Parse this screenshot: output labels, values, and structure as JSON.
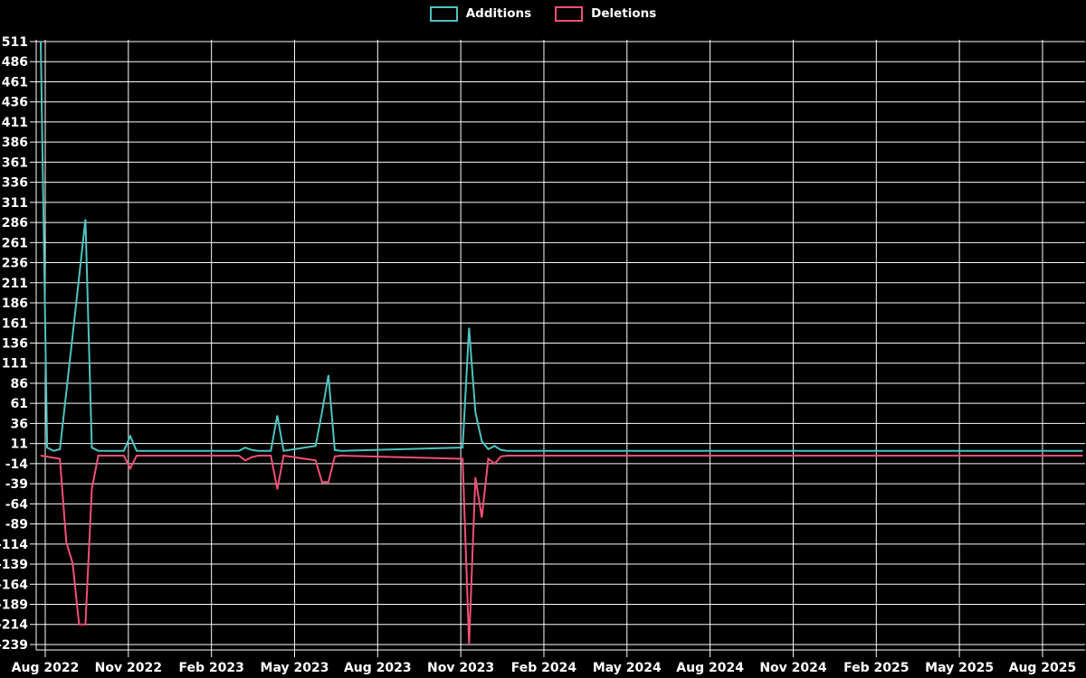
{
  "legend": {
    "0": {
      "label": "Additions",
      "color": "#4dc3c0"
    },
    "1": {
      "label": "Deletions",
      "color": "#f05076"
    }
  },
  "chart_data": {
    "type": "line",
    "title": "",
    "xlabel": "",
    "ylabel": "",
    "background": "#000000",
    "grid": true,
    "grid_color": "#fcfcfc",
    "text_color": "#ffffff",
    "legend_position": "top-center",
    "ylim": [
      -239,
      511
    ],
    "y_tick_step": 25,
    "y_tick_labels": [
      511,
      486,
      461,
      436,
      411,
      386,
      361,
      336,
      311,
      286,
      261,
      236,
      211,
      186,
      161,
      136,
      111,
      86,
      61,
      36,
      11,
      -14,
      -39,
      -64,
      -89,
      -114,
      -139,
      -164,
      -189,
      -214,
      -239
    ],
    "x_tick_labels": [
      "Aug 2022",
      "Nov 2022",
      "Feb 2023",
      "May 2023",
      "Aug 2023",
      "Nov 2023",
      "Feb 2024",
      "May 2024",
      "Aug 2024",
      "Nov 2024",
      "Feb 2025",
      "May 2025",
      "Aug 2025"
    ],
    "x_unit": "weeks since first data point (early Aug 2022), 13 weeks per x tick",
    "series": [
      {
        "name": "Additions",
        "color": "#4dc3c0",
        "points": [
          [
            0,
            511
          ],
          [
            1,
            6
          ],
          [
            2,
            2
          ],
          [
            3,
            4
          ],
          [
            4,
            75
          ],
          [
            5,
            146
          ],
          [
            6,
            218
          ],
          [
            7,
            290
          ],
          [
            8,
            6
          ],
          [
            9,
            2
          ],
          [
            13,
            2
          ],
          [
            14,
            20
          ],
          [
            15,
            2
          ],
          [
            31,
            2
          ],
          [
            32,
            6
          ],
          [
            33,
            3
          ],
          [
            34,
            2
          ],
          [
            36,
            2
          ],
          [
            37,
            46
          ],
          [
            38,
            2
          ],
          [
            43,
            8
          ],
          [
            44,
            50
          ],
          [
            45,
            96
          ],
          [
            46,
            3
          ],
          [
            47,
            2
          ],
          [
            66,
            6
          ],
          [
            67,
            155
          ],
          [
            68,
            50
          ],
          [
            69,
            14
          ],
          [
            70,
            4
          ],
          [
            71,
            8
          ],
          [
            72,
            3
          ],
          [
            73,
            2
          ],
          [
            163,
            2
          ]
        ]
      },
      {
        "name": "Deletions",
        "color": "#f05076",
        "points": [
          [
            0,
            -4
          ],
          [
            3,
            -8
          ],
          [
            4,
            -112
          ],
          [
            5,
            -138
          ],
          [
            6,
            -214
          ],
          [
            7,
            -214
          ],
          [
            8,
            -45
          ],
          [
            9,
            -4
          ],
          [
            13,
            -4
          ],
          [
            14,
            -20
          ],
          [
            15,
            -4
          ],
          [
            31,
            -4
          ],
          [
            32,
            -10
          ],
          [
            33,
            -6
          ],
          [
            34,
            -4
          ],
          [
            36,
            -4
          ],
          [
            37,
            -46
          ],
          [
            38,
            -4
          ],
          [
            43,
            -10
          ],
          [
            44,
            -37
          ],
          [
            45,
            -37
          ],
          [
            46,
            -5
          ],
          [
            47,
            -4
          ],
          [
            66,
            -8
          ],
          [
            67,
            -239
          ],
          [
            68,
            -31
          ],
          [
            69,
            -81
          ],
          [
            70,
            -8
          ],
          [
            71,
            -14
          ],
          [
            72,
            -5
          ],
          [
            73,
            -4
          ],
          [
            163,
            -4
          ]
        ]
      }
    ]
  }
}
